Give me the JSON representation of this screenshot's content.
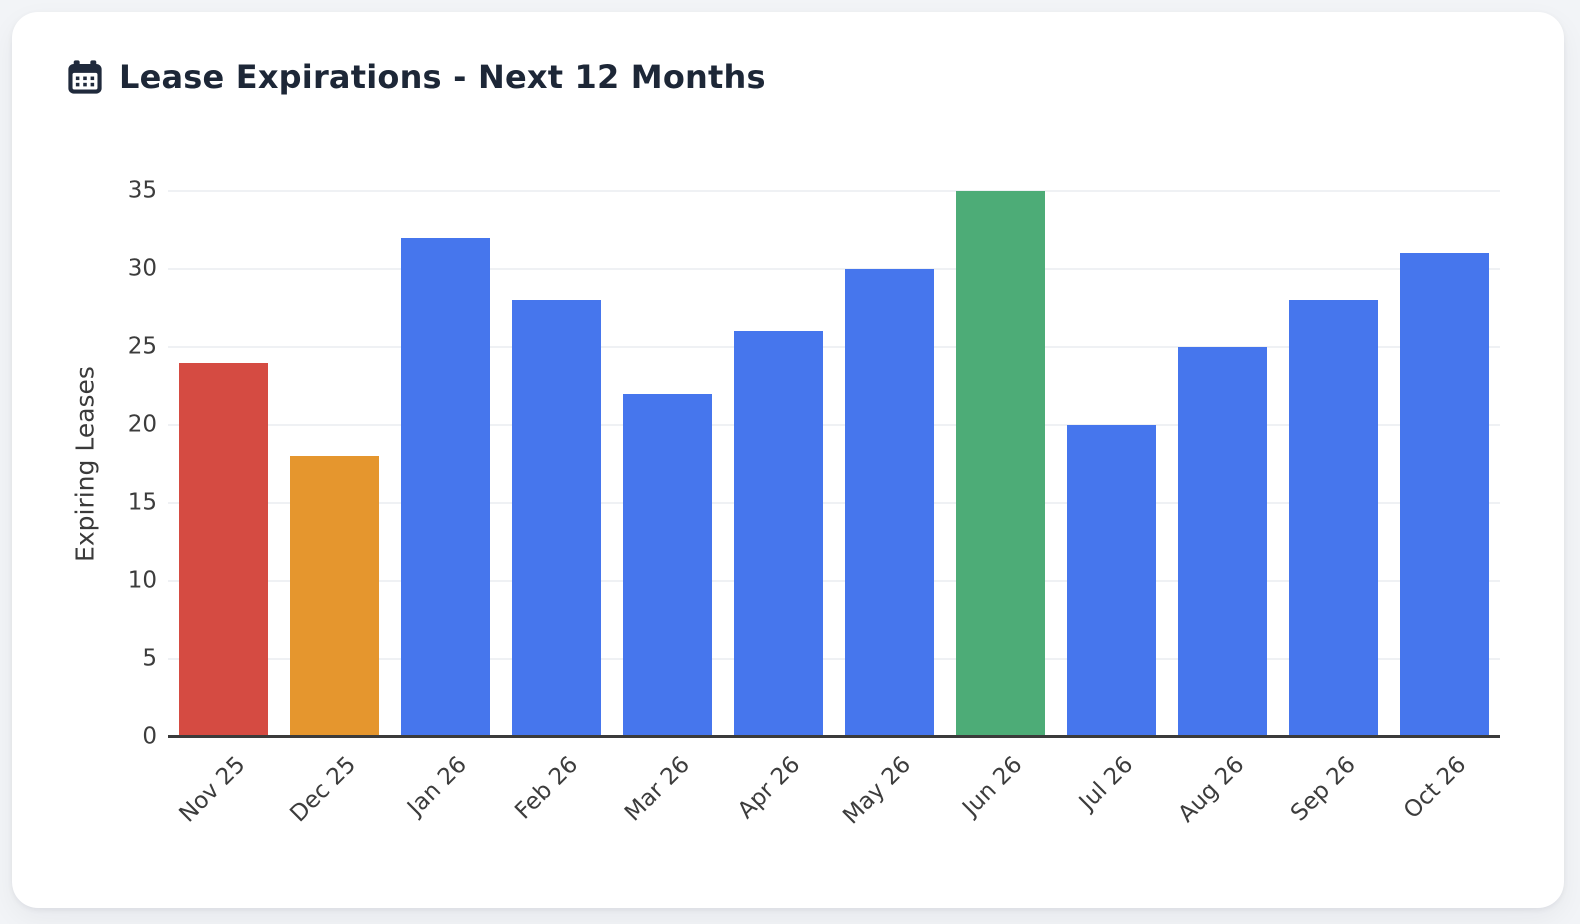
{
  "header": {
    "icon": "calendar-icon",
    "icon_color": "#202a3c"
  },
  "chart_data": {
    "type": "bar",
    "title": "Lease Expirations - Next 12 Months",
    "categories": [
      "Nov 25",
      "Dec 25",
      "Jan 26",
      "Feb 26",
      "Mar 26",
      "Apr 26",
      "May 26",
      "Jun 26",
      "Jul 26",
      "Aug 26",
      "Sep 26",
      "Oct 26"
    ],
    "values": [
      24,
      18,
      32,
      28,
      22,
      26,
      30,
      35,
      20,
      25,
      28,
      31
    ],
    "bar_colors": [
      "#d54b42",
      "#e5962e",
      "#4676ed",
      "#4676ed",
      "#4676ed",
      "#4676ed",
      "#4676ed",
      "#4dac77",
      "#4676ed",
      "#4676ed",
      "#4676ed",
      "#4676ed"
    ],
    "xlabel": "",
    "ylabel": "Expiring Leases",
    "ylim": [
      0,
      35
    ],
    "yticks": [
      0,
      5,
      10,
      15,
      20,
      25,
      30,
      35
    ],
    "grid": true,
    "legend": "none",
    "x_tick_rotation_deg": -45
  },
  "colors": {
    "page_bg": "#f2f4f7",
    "card_bg": "#ffffff",
    "title_text": "#1d2737",
    "axis_text": "#3c3c3c",
    "gridline": "#eff1f4",
    "axis_line": "#3b3b3b",
    "default_bar": "#4676ed",
    "nov_highlight": "#d54b42",
    "dec_highlight": "#e5962e",
    "jun_highlight": "#4dac77"
  }
}
